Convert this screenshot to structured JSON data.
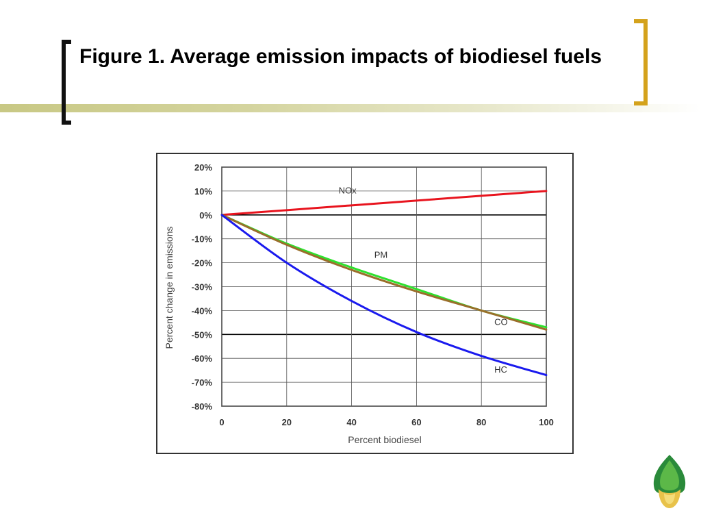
{
  "slide": {
    "title": "Figure 1. Average emission impacts of biodiesel fuels"
  },
  "colors": {
    "title_bar": "#c8c884",
    "right_bracket": "#d4a21c",
    "left_bracket": "#111111"
  },
  "logo": {
    "icon": "leaf-drop-icon"
  },
  "chart_data": {
    "type": "line",
    "title": "",
    "xlabel": "Percent biodiesel",
    "ylabel": "Percent change in emissions",
    "xlim": [
      0,
      100
    ],
    "ylim": [
      -80,
      20
    ],
    "x_ticks": [
      0,
      20,
      40,
      60,
      80,
      100
    ],
    "x_tick_labels": [
      "0",
      "20",
      "40",
      "60",
      "80",
      "100"
    ],
    "y_ticks": [
      20,
      10,
      0,
      -10,
      -20,
      -30,
      -40,
      -50,
      -60,
      -70,
      -80
    ],
    "y_tick_labels": [
      "20%",
      "10%",
      "0%",
      "-10%",
      "-20%",
      "-30%",
      "-40%",
      "-50%",
      "-60%",
      "-70%",
      "-80%"
    ],
    "grid": true,
    "emphasized_gridlines_y": [
      0,
      -50
    ],
    "legend": "inline labels",
    "series": [
      {
        "name": "NOx",
        "color": "#e8141e",
        "x": [
          0,
          20,
          40,
          60,
          80,
          100
        ],
        "y": [
          0,
          2,
          4,
          6,
          8,
          10
        ]
      },
      {
        "name": "PM",
        "color": "#2ee02e",
        "x": [
          0,
          20,
          40,
          60,
          80,
          100
        ],
        "y": [
          0,
          -12,
          -22,
          -31,
          -40,
          -47
        ]
      },
      {
        "name": "CO",
        "color": "#9a6e2a",
        "x": [
          0,
          20,
          40,
          60,
          80,
          100
        ],
        "y": [
          0,
          -12.5,
          -23,
          -32,
          -40,
          -48
        ]
      },
      {
        "name": "HC",
        "color": "#1a1aee",
        "x": [
          0,
          20,
          40,
          60,
          80,
          100
        ],
        "y": [
          0,
          -20,
          -36,
          -49,
          -59,
          -67
        ]
      }
    ]
  }
}
